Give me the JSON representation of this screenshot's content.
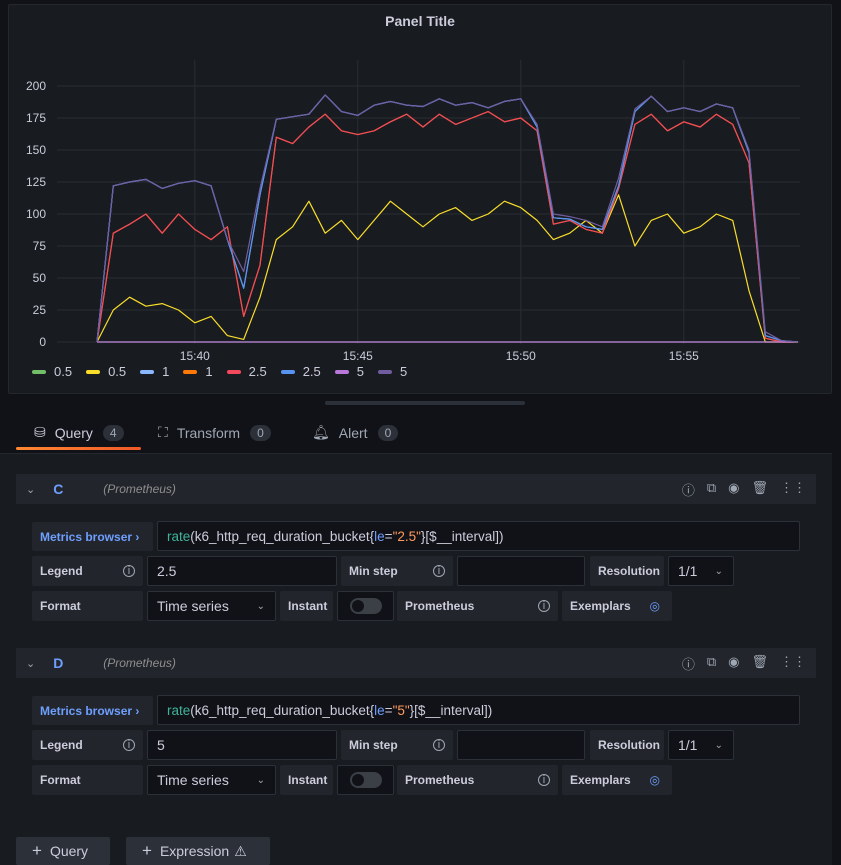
{
  "panel": {
    "title": "Panel Title"
  },
  "legend": [
    {
      "label": "0.5",
      "color": "#73bf69"
    },
    {
      "label": "0.5",
      "color": "#fade2a"
    },
    {
      "label": "1",
      "color": "#8ab8ff"
    },
    {
      "label": "1",
      "color": "#ff780a"
    },
    {
      "label": "2.5",
      "color": "#f2495c"
    },
    {
      "label": "2.5",
      "color": "#5794f2"
    },
    {
      "label": "5",
      "color": "#b877d9"
    },
    {
      "label": "5",
      "color": "#705da0"
    }
  ],
  "chart_data": {
    "type": "line",
    "x_start": "15:37:00",
    "x_step_seconds": 30,
    "x_ticks": [
      "15:40",
      "15:45",
      "15:50",
      "15:55"
    ],
    "y_ticks": [
      0,
      25,
      50,
      75,
      100,
      125,
      150,
      175,
      200
    ],
    "ylim": [
      0,
      210
    ],
    "grid": true,
    "legend_position": "bottom-left",
    "series": [
      {
        "name": "0.5",
        "color": "#73bf69",
        "values": [
          0,
          0,
          0,
          0,
          0,
          0,
          0,
          0,
          0,
          0,
          0,
          0,
          0,
          0,
          0,
          0,
          0,
          0,
          0,
          0,
          0,
          0,
          0,
          0,
          0,
          0,
          0,
          0,
          0,
          0,
          0,
          0,
          0,
          0,
          0,
          0,
          0,
          0,
          0,
          0,
          0,
          0,
          0,
          0
        ]
      },
      {
        "name": "0.5",
        "color": "#fade2a",
        "values": [
          0,
          25,
          35,
          28,
          30,
          25,
          15,
          20,
          5,
          2,
          35,
          80,
          90,
          110,
          85,
          95,
          80,
          95,
          110,
          100,
          90,
          100,
          105,
          95,
          100,
          110,
          105,
          95,
          80,
          85,
          95,
          85,
          115,
          75,
          95,
          100,
          85,
          90,
          100,
          95,
          40,
          0,
          0,
          0
        ]
      },
      {
        "name": "1",
        "color": "#8ab8ff",
        "values": [
          0,
          122,
          125,
          127,
          120,
          124,
          126,
          122,
          80,
          42,
          115,
          174,
          176,
          178,
          193,
          180,
          177,
          185,
          188,
          185,
          184,
          190,
          185,
          187,
          183,
          188,
          190,
          168,
          97,
          96,
          90,
          88,
          122,
          180,
          192,
          180,
          183,
          180,
          186,
          183,
          148,
          5,
          1,
          0
        ]
      },
      {
        "name": "1",
        "color": "#ff780a",
        "values": [
          0,
          85,
          92,
          100,
          85,
          100,
          88,
          80,
          90,
          20,
          60,
          160,
          155,
          168,
          178,
          165,
          162,
          165,
          172,
          178,
          168,
          178,
          170,
          175,
          180,
          172,
          175,
          165,
          92,
          95,
          88,
          85,
          120,
          170,
          178,
          165,
          172,
          168,
          178,
          170,
          140,
          3,
          0,
          0
        ]
      },
      {
        "name": "2.5",
        "color": "#f2495c",
        "values": [
          0,
          85,
          92,
          100,
          85,
          100,
          88,
          80,
          90,
          20,
          60,
          160,
          155,
          168,
          178,
          165,
          162,
          165,
          172,
          178,
          168,
          178,
          170,
          175,
          180,
          172,
          175,
          165,
          92,
          95,
          88,
          85,
          120,
          170,
          178,
          165,
          172,
          168,
          178,
          170,
          140,
          3,
          0,
          0
        ]
      },
      {
        "name": "2.5",
        "color": "#5794f2",
        "values": [
          0,
          122,
          125,
          127,
          120,
          124,
          126,
          122,
          80,
          42,
          115,
          174,
          176,
          178,
          193,
          180,
          177,
          185,
          188,
          185,
          184,
          190,
          185,
          187,
          183,
          188,
          190,
          168,
          97,
          96,
          90,
          88,
          122,
          180,
          192,
          180,
          183,
          180,
          186,
          183,
          148,
          5,
          1,
          0
        ]
      },
      {
        "name": "5",
        "color": "#b877d9",
        "values": [
          0,
          0,
          0,
          0,
          0,
          0,
          0,
          0,
          0,
          0,
          0,
          0,
          0,
          0,
          0,
          0,
          0,
          0,
          0,
          0,
          0,
          0,
          0,
          0,
          0,
          0,
          0,
          0,
          0,
          0,
          0,
          0,
          0,
          0,
          0,
          0,
          0,
          0,
          0,
          0,
          0,
          0,
          0,
          0
        ]
      },
      {
        "name": "5",
        "color": "#705da0",
        "values": [
          0,
          122,
          125,
          127,
          120,
          124,
          126,
          122,
          80,
          55,
          120,
          174,
          176,
          178,
          193,
          180,
          177,
          185,
          188,
          185,
          184,
          190,
          185,
          187,
          183,
          188,
          190,
          170,
          100,
          98,
          95,
          90,
          128,
          182,
          192,
          180,
          183,
          180,
          186,
          183,
          150,
          8,
          1,
          0
        ]
      }
    ]
  },
  "tabs": [
    {
      "label": "Query",
      "count": "4"
    },
    {
      "label": "Transform",
      "count": "0"
    },
    {
      "label": "Alert",
      "count": "0"
    }
  ],
  "queries": [
    {
      "ref": "C",
      "datasource": "(Prometheus)",
      "metrics_browser": "Metrics browser ›",
      "expr": {
        "fn": "rate",
        "open": "(k6_http_req_duration_bucket{",
        "label": "le",
        "eq": "=",
        "value": "\"2.5\"",
        "close": "}[$__interval])"
      },
      "legend_label": "Legend",
      "legend_value": "2.5",
      "min_step_label": "Min step",
      "min_step_value": "",
      "resolution_label": "Resolution",
      "resolution_value": "1/1",
      "format_label": "Format",
      "format_value": "Time series",
      "instant_label": "Instant",
      "prometheus_label": "Prometheus",
      "exemplars_label": "Exemplars"
    },
    {
      "ref": "D",
      "datasource": "(Prometheus)",
      "metrics_browser": "Metrics browser ›",
      "expr": {
        "fn": "rate",
        "open": "(k6_http_req_duration_bucket{",
        "label": "le",
        "eq": "=",
        "value": "\"5\"",
        "close": "}[$__interval])"
      },
      "legend_label": "Legend",
      "legend_value": "5",
      "min_step_label": "Min step",
      "min_step_value": "",
      "resolution_label": "Resolution",
      "resolution_value": "1/1",
      "format_label": "Format",
      "format_value": "Time series",
      "instant_label": "Instant",
      "prometheus_label": "Prometheus",
      "exemplars_label": "Exemplars"
    }
  ],
  "buttons": {
    "add_query": "Query",
    "add_expression": "Expression"
  }
}
